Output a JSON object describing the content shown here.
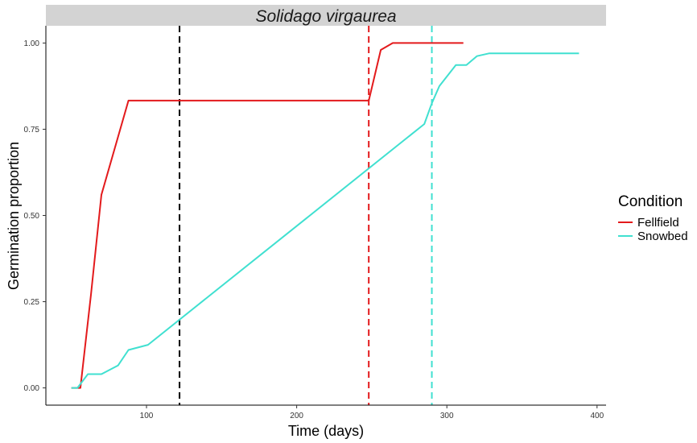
{
  "chart_data": {
    "type": "line",
    "title": "Solidago virgaurea",
    "xlabel": "Time (days)",
    "ylabel": "Germination proportion",
    "xlim": [
      33,
      406
    ],
    "ylim": [
      -0.05,
      1.05
    ],
    "x_ticks": [
      100,
      200,
      300,
      400
    ],
    "y_ticks": [
      0.0,
      0.25,
      0.5,
      0.75,
      1.0
    ],
    "y_tick_labels": [
      "0.00",
      "0.25",
      "0.50",
      "0.75",
      "1.00"
    ],
    "grid": false,
    "legend": {
      "title": "Condition",
      "position": "right",
      "entries": [
        "Fellfield",
        "Snowbed"
      ]
    },
    "series": [
      {
        "name": "Fellfield",
        "color": "#e31a1c",
        "points": [
          [
            50,
            0.0
          ],
          [
            56,
            0.0
          ],
          [
            63,
            0.27
          ],
          [
            70,
            0.56
          ],
          [
            88,
            0.833
          ],
          [
            248,
            0.833
          ],
          [
            256,
            0.98
          ],
          [
            264,
            1.0
          ],
          [
            311,
            1.0
          ]
        ]
      },
      {
        "name": "Snowbed",
        "color": "#40e0d0",
        "points": [
          [
            50,
            0.0
          ],
          [
            54,
            0.0
          ],
          [
            61,
            0.04
          ],
          [
            70,
            0.04
          ],
          [
            81,
            0.065
          ],
          [
            88,
            0.11
          ],
          [
            101,
            0.125
          ],
          [
            285,
            0.765
          ],
          [
            290,
            0.825
          ],
          [
            295,
            0.875
          ],
          [
            306,
            0.936
          ],
          [
            313,
            0.936
          ],
          [
            320,
            0.962
          ],
          [
            328,
            0.97
          ],
          [
            388,
            0.97
          ]
        ]
      }
    ],
    "vlines": [
      {
        "x": 122,
        "color": "#000000",
        "style": "dashed"
      },
      {
        "x": 248,
        "color": "#e31a1c",
        "style": "dashed"
      },
      {
        "x": 290,
        "color": "#40e0d0",
        "style": "dashed"
      }
    ]
  }
}
